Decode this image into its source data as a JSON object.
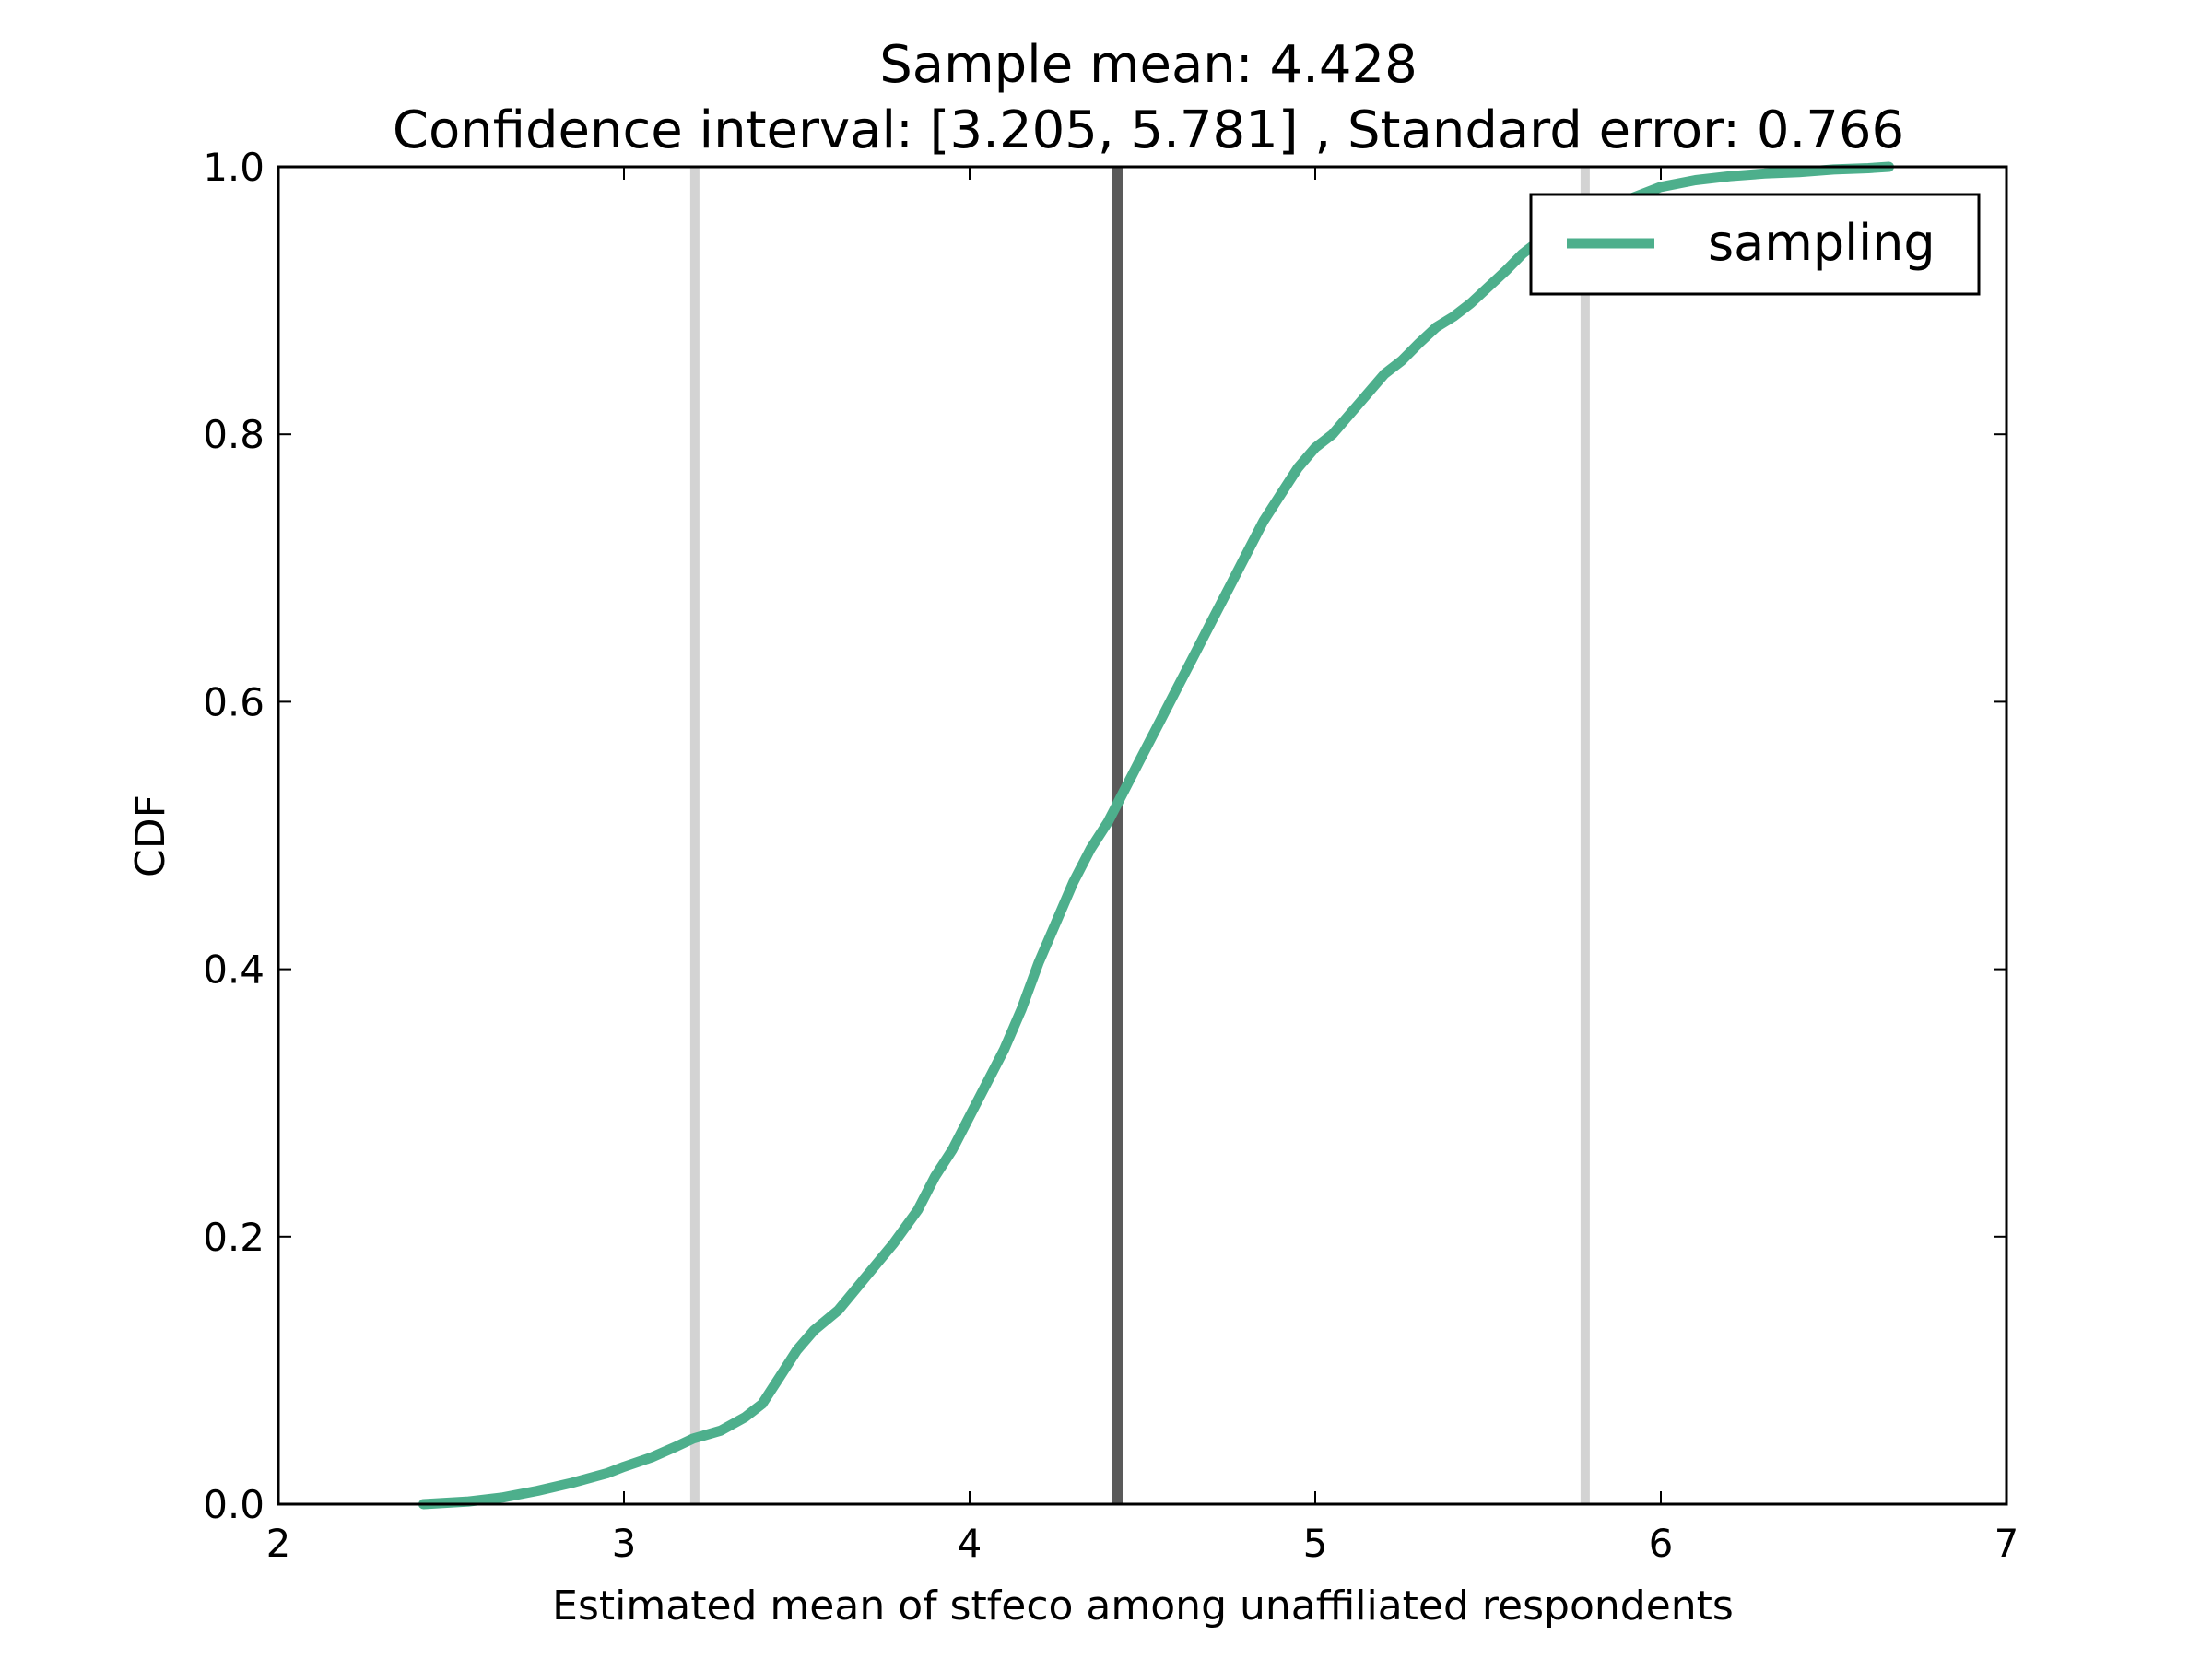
{
  "chart_data": {
    "type": "line",
    "title": "Sample mean: 4.428",
    "subtitle": "Confidence interval: [3.205, 5.781] , Standard error: 0.766",
    "xlabel": "Estimated mean of stfeco among unaffiliated respondents",
    "ylabel": "CDF",
    "xlim": [
      2,
      7
    ],
    "ylim": [
      0,
      1.0
    ],
    "xticks": [
      2,
      3,
      4,
      5,
      6,
      7
    ],
    "xtick_labels": [
      "2",
      "3",
      "4",
      "5",
      "6",
      "7"
    ],
    "yticks": [
      0.0,
      0.2,
      0.4,
      0.6,
      0.8,
      1.0
    ],
    "ytick_labels": [
      "0.0",
      "0.2",
      "0.4",
      "0.6",
      "0.8",
      "1.0"
    ],
    "grid": false,
    "legend_position": "top-right",
    "series": [
      {
        "name": "sampling",
        "color": "#4daf8c",
        "x": [
          2.42,
          2.55,
          2.65,
          2.75,
          2.85,
          2.95,
          3.0,
          3.08,
          3.15,
          3.2,
          3.28,
          3.35,
          3.4,
          3.45,
          3.5,
          3.55,
          3.62,
          3.7,
          3.78,
          3.85,
          3.9,
          3.95,
          4.0,
          4.05,
          4.1,
          4.15,
          4.2,
          4.25,
          4.3,
          4.35,
          4.4,
          4.45,
          4.5,
          4.55,
          4.6,
          4.65,
          4.7,
          4.75,
          4.8,
          4.85,
          4.9,
          4.95,
          5.0,
          5.05,
          5.1,
          5.15,
          5.2,
          5.25,
          5.3,
          5.35,
          5.4,
          5.45,
          5.5,
          5.55,
          5.6,
          5.65,
          5.7,
          5.8,
          5.9,
          6.0,
          6.1,
          6.2,
          6.3,
          6.4,
          6.5,
          6.6,
          6.66
        ],
        "y": [
          0.0,
          0.002,
          0.005,
          0.01,
          0.016,
          0.023,
          0.028,
          0.035,
          0.043,
          0.049,
          0.055,
          0.065,
          0.075,
          0.095,
          0.115,
          0.13,
          0.145,
          0.17,
          0.195,
          0.22,
          0.245,
          0.265,
          0.29,
          0.315,
          0.34,
          0.37,
          0.405,
          0.435,
          0.465,
          0.49,
          0.51,
          0.535,
          0.56,
          0.585,
          0.61,
          0.635,
          0.66,
          0.685,
          0.71,
          0.735,
          0.755,
          0.775,
          0.79,
          0.8,
          0.815,
          0.83,
          0.845,
          0.855,
          0.868,
          0.88,
          0.888,
          0.898,
          0.91,
          0.922,
          0.935,
          0.945,
          0.955,
          0.965,
          0.975,
          0.985,
          0.99,
          0.993,
          0.995,
          0.996,
          0.998,
          0.999,
          1.0
        ]
      }
    ],
    "reference_lines": [
      {
        "x": 3.205,
        "color": "#d3d3d3"
      },
      {
        "x": 4.428,
        "color": "#5a5a5a"
      },
      {
        "x": 5.781,
        "color": "#d3d3d3"
      }
    ]
  }
}
